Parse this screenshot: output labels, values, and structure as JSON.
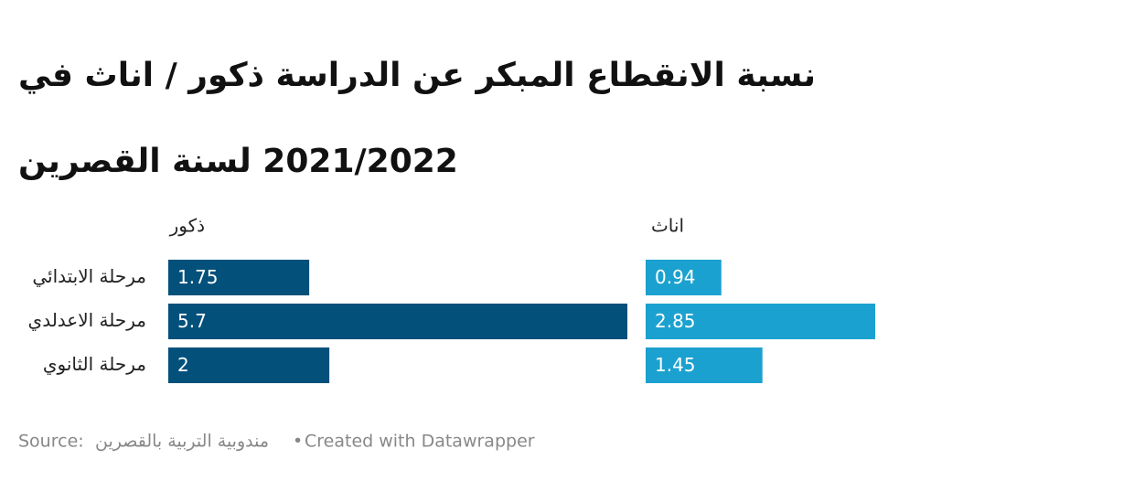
{
  "chart_data": {
    "type": "split-bar",
    "title": "نسبة الانقطاع المبكر عن الدراسة ذكور / اناث  في 2021/2022 لسنة القصرين",
    "categories": [
      "مرحلة الابتدائي",
      "مرحلة الاعدلدي",
      "مرحلة الثانوي"
    ],
    "series": [
      {
        "name": "ذكور",
        "color": "#03507b",
        "values": [
          1.75,
          5.7,
          2
        ]
      },
      {
        "name": "اناث",
        "color": "#1ba1cf",
        "values": [
          0.94,
          2.85,
          1.45
        ]
      }
    ],
    "source_label": "Source:",
    "source": "مندوبية التربية بالقصرين",
    "credit": "Created with Datawrapper"
  }
}
